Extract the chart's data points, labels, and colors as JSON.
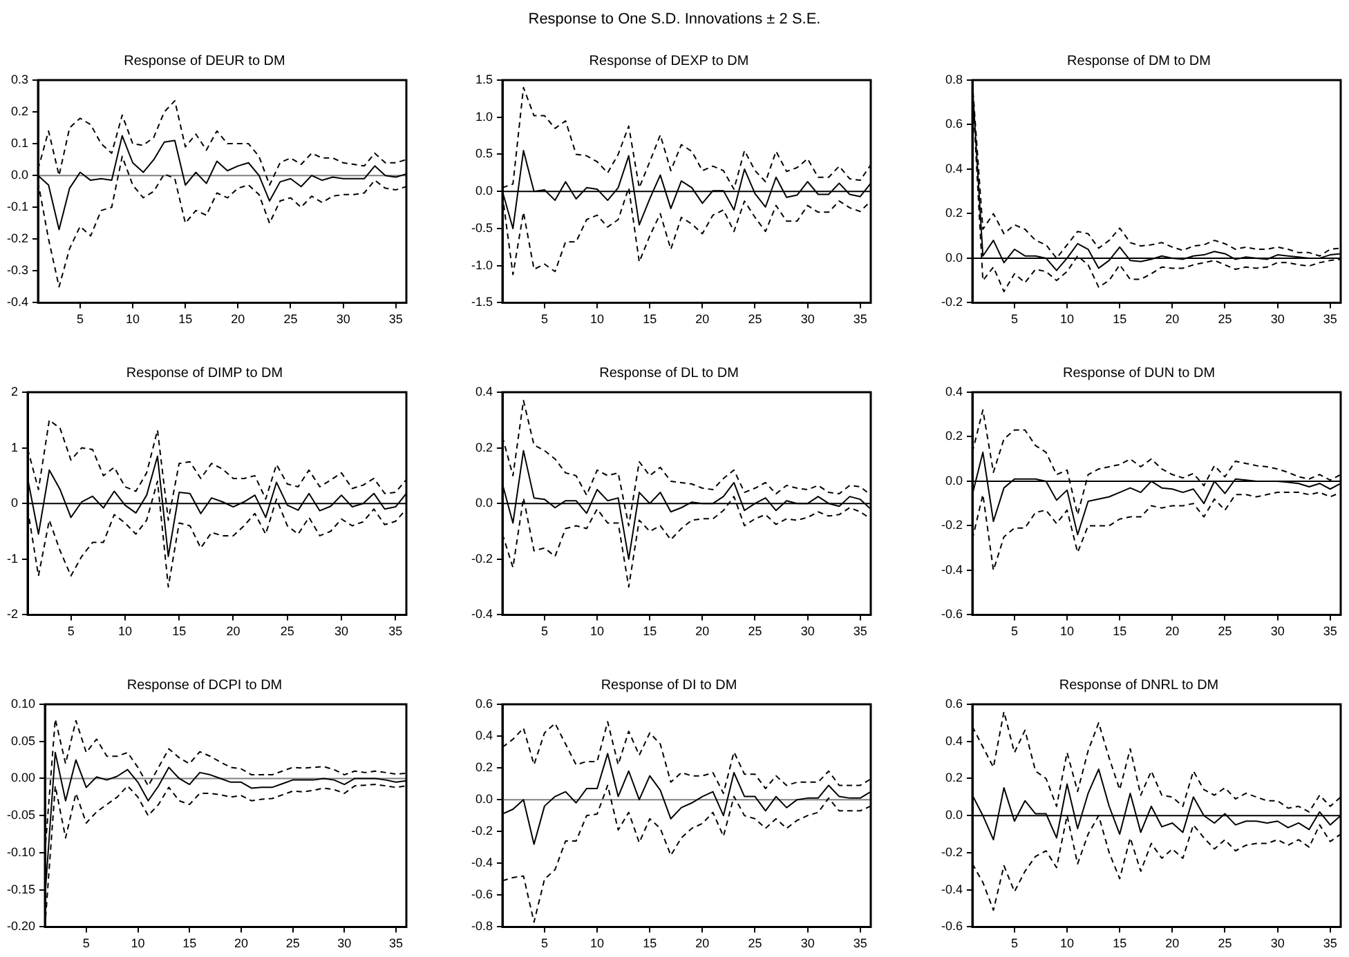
{
  "chart_data": [
    {
      "type": "other",
      "title": "Response to One S.D. Innovations ± 2 S.E."
    },
    {
      "type": "line",
      "title": "Response of DEUR to DM",
      "x": [
        1,
        2,
        3,
        4,
        5,
        6,
        7,
        8,
        9,
        10,
        11,
        12,
        13,
        14,
        15,
        16,
        17,
        18,
        19,
        20,
        21,
        22,
        23,
        24,
        25,
        26,
        27,
        28,
        29,
        30,
        31,
        32,
        33,
        34,
        35,
        36
      ],
      "xlim": [
        1,
        36
      ],
      "xticks": [
        5,
        10,
        15,
        20,
        25,
        30,
        35
      ],
      "ylim": [
        -0.4,
        0.3
      ],
      "yticks": [
        -0.4,
        -0.3,
        -0.2,
        -0.1,
        {
          "value": 0,
          "label": "0.0"
        },
        0.1,
        0.2,
        0.3
      ],
      "grid": false,
      "legend": false,
      "marker": "none",
      "ref_lines": [
        {
          "axis": "y",
          "value": 0,
          "color": "#808080"
        }
      ],
      "series": [
        {
          "color": "#000000",
          "line_style": "solid",
          "values": [
            0.0,
            -0.03,
            -0.17,
            -0.04,
            0.01,
            -0.015,
            -0.01,
            -0.015,
            0.125,
            0.04,
            0.01,
            0.05,
            0.105,
            0.11,
            -0.03,
            0.01,
            -0.025,
            0.045,
            0.015,
            0.03,
            0.04,
            0.0,
            -0.08,
            -0.02,
            -0.01,
            -0.035,
            0.0,
            -0.015,
            -0.005,
            -0.01,
            -0.01,
            -0.01,
            0.03,
            0.0,
            -0.005,
            0.005
          ]
        },
        {
          "color": "#000000",
          "line_style": "dashed",
          "values": [
            0.02,
            0.14,
            0.0,
            0.15,
            0.18,
            0.16,
            0.1,
            0.07,
            0.19,
            0.1,
            0.095,
            0.12,
            0.2,
            0.235,
            0.09,
            0.13,
            0.08,
            0.14,
            0.1,
            0.1,
            0.1,
            0.06,
            -0.03,
            0.04,
            0.055,
            0.035,
            0.07,
            0.055,
            0.055,
            0.04,
            0.035,
            0.03,
            0.07,
            0.04,
            0.04,
            0.05
          ]
        },
        {
          "color": "#000000",
          "line_style": "dashed",
          "values": [
            -0.02,
            -0.2,
            -0.35,
            -0.23,
            -0.16,
            -0.19,
            -0.11,
            -0.1,
            0.06,
            -0.03,
            -0.07,
            -0.05,
            0.005,
            -0.01,
            -0.15,
            -0.11,
            -0.125,
            -0.055,
            -0.07,
            -0.04,
            -0.03,
            -0.06,
            -0.15,
            -0.08,
            -0.07,
            -0.1,
            -0.065,
            -0.085,
            -0.065,
            -0.06,
            -0.06,
            -0.055,
            -0.015,
            -0.04,
            -0.045,
            -0.035
          ]
        }
      ]
    },
    {
      "type": "line",
      "title": "Response of DEXP to DM",
      "x": [
        1,
        2,
        3,
        4,
        5,
        6,
        7,
        8,
        9,
        10,
        11,
        12,
        13,
        14,
        15,
        16,
        17,
        18,
        19,
        20,
        21,
        22,
        23,
        24,
        25,
        26,
        27,
        28,
        29,
        30,
        31,
        32,
        33,
        34,
        35,
        36
      ],
      "xlim": [
        1,
        36
      ],
      "xticks": [
        5,
        10,
        15,
        20,
        25,
        30,
        35
      ],
      "ylim": [
        -1.5,
        1.5
      ],
      "yticks": [
        -1.5,
        {
          "value": -1,
          "label": "-1.0"
        },
        -0.5,
        {
          "value": 0,
          "label": "0.0"
        },
        0.5,
        {
          "value": 1,
          "label": "1.0"
        },
        1.5
      ],
      "grid": false,
      "legend": false,
      "marker": "none",
      "ref_lines": [
        {
          "axis": "y",
          "value": 0,
          "color": "#000000"
        }
      ],
      "series": [
        {
          "color": "#000000",
          "line_style": "solid",
          "values": [
            0.0,
            -0.5,
            0.55,
            0.0,
            0.02,
            -0.12,
            0.13,
            -0.1,
            0.05,
            0.03,
            -0.12,
            0.05,
            0.48,
            -0.45,
            -0.1,
            0.22,
            -0.23,
            0.14,
            0.05,
            -0.16,
            0.01,
            0.01,
            -0.25,
            0.3,
            -0.03,
            -0.21,
            0.19,
            -0.08,
            -0.05,
            0.13,
            -0.04,
            -0.04,
            0.11,
            -0.04,
            -0.07,
            0.11
          ]
        },
        {
          "color": "#000000",
          "line_style": "dashed",
          "values": [
            0.05,
            0.1,
            1.4,
            1.02,
            1.02,
            0.85,
            0.95,
            0.5,
            0.48,
            0.4,
            0.25,
            0.5,
            0.88,
            0.05,
            0.4,
            0.76,
            0.28,
            0.63,
            0.54,
            0.28,
            0.34,
            0.28,
            0.03,
            0.55,
            0.28,
            0.13,
            0.54,
            0.27,
            0.32,
            0.44,
            0.19,
            0.19,
            0.34,
            0.17,
            0.15,
            0.36
          ]
        },
        {
          "color": "#000000",
          "line_style": "dashed",
          "values": [
            -0.05,
            -1.12,
            -0.28,
            -1.05,
            -0.98,
            -1.08,
            -0.68,
            -0.68,
            -0.38,
            -0.32,
            -0.48,
            -0.38,
            0.05,
            -0.95,
            -0.6,
            -0.3,
            -0.78,
            -0.35,
            -0.44,
            -0.57,
            -0.32,
            -0.25,
            -0.54,
            -0.13,
            -0.35,
            -0.54,
            -0.19,
            -0.4,
            -0.4,
            -0.19,
            -0.28,
            -0.28,
            -0.13,
            -0.22,
            -0.27,
            -0.13
          ]
        }
      ]
    },
    {
      "type": "line",
      "title": "Response of DM to DM",
      "x": [
        1,
        2,
        3,
        4,
        5,
        6,
        7,
        8,
        9,
        10,
        11,
        12,
        13,
        14,
        15,
        16,
        17,
        18,
        19,
        20,
        21,
        22,
        23,
        24,
        25,
        26,
        27,
        28,
        29,
        30,
        31,
        32,
        33,
        34,
        35,
        36
      ],
      "xlim": [
        1,
        36
      ],
      "xticks": [
        5,
        10,
        15,
        20,
        25,
        30,
        35
      ],
      "ylim": [
        -0.2,
        0.8
      ],
      "yticks": [
        -0.2,
        {
          "value": 0,
          "label": "0.0"
        },
        0.2,
        0.4,
        0.6,
        0.8
      ],
      "grid": false,
      "legend": false,
      "marker": "none",
      "ref_lines": [
        {
          "axis": "y",
          "value": 0,
          "color": "#000000"
        }
      ],
      "series": [
        {
          "color": "#000000",
          "line_style": "solid",
          "values": [
            0.78,
            0.01,
            0.08,
            -0.02,
            0.04,
            0.01,
            0.01,
            0.0,
            -0.055,
            0.0,
            0.065,
            0.04,
            -0.045,
            -0.01,
            0.05,
            -0.01,
            -0.015,
            -0.005,
            0.01,
            0.0,
            -0.005,
            0.01,
            0.015,
            0.03,
            0.02,
            -0.005,
            0.005,
            0.0,
            -0.005,
            0.015,
            0.01,
            0.005,
            0.0,
            0.0,
            0.015,
            0.02
          ]
        },
        {
          "color": "#000000",
          "line_style": "dashed",
          "values": [
            0.79,
            0.13,
            0.2,
            0.11,
            0.15,
            0.13,
            0.08,
            0.06,
            0.0,
            0.06,
            0.12,
            0.11,
            0.045,
            0.08,
            0.135,
            0.07,
            0.055,
            0.06,
            0.07,
            0.05,
            0.035,
            0.055,
            0.06,
            0.08,
            0.065,
            0.04,
            0.05,
            0.04,
            0.04,
            0.05,
            0.04,
            0.025,
            0.025,
            0.01,
            0.04,
            0.045
          ]
        },
        {
          "color": "#000000",
          "line_style": "dashed",
          "values": [
            0.76,
            -0.1,
            -0.04,
            -0.15,
            -0.07,
            -0.11,
            -0.05,
            -0.06,
            -0.1,
            -0.06,
            0.01,
            -0.03,
            -0.13,
            -0.1,
            -0.03,
            -0.095,
            -0.095,
            -0.07,
            -0.04,
            -0.045,
            -0.045,
            -0.03,
            -0.02,
            -0.01,
            -0.03,
            -0.05,
            -0.04,
            -0.045,
            -0.04,
            -0.02,
            -0.02,
            -0.03,
            -0.035,
            -0.02,
            -0.01,
            -0.005
          ]
        }
      ]
    },
    {
      "type": "line",
      "title": "Response of DIMP to DM",
      "x": [
        1,
        2,
        3,
        4,
        5,
        6,
        7,
        8,
        9,
        10,
        11,
        12,
        13,
        14,
        15,
        16,
        17,
        18,
        19,
        20,
        21,
        22,
        23,
        24,
        25,
        26,
        27,
        28,
        29,
        30,
        31,
        32,
        33,
        34,
        35,
        36
      ],
      "xlim": [
        1,
        36
      ],
      "xticks": [
        5,
        10,
        15,
        20,
        25,
        30,
        35
      ],
      "ylim": [
        -2,
        2
      ],
      "yticks": [
        -2,
        -1,
        0,
        1,
        2
      ],
      "grid": false,
      "legend": false,
      "marker": "none",
      "ref_lines": [
        {
          "axis": "y",
          "value": 0,
          "color": "#000000"
        }
      ],
      "series": [
        {
          "color": "#000000",
          "line_style": "solid",
          "values": [
            0.45,
            -0.55,
            0.6,
            0.25,
            -0.25,
            0.03,
            0.13,
            -0.08,
            0.22,
            -0.03,
            -0.17,
            0.15,
            0.85,
            -0.95,
            0.2,
            0.18,
            -0.18,
            0.1,
            0.03,
            -0.06,
            0.03,
            0.15,
            -0.25,
            0.38,
            -0.03,
            -0.12,
            0.18,
            -0.13,
            -0.05,
            0.15,
            -0.06,
            0.0,
            0.18,
            -0.1,
            -0.06,
            0.18
          ]
        },
        {
          "color": "#000000",
          "line_style": "dashed",
          "values": [
            0.98,
            0.25,
            1.5,
            1.35,
            0.78,
            1.0,
            0.97,
            0.5,
            0.65,
            0.3,
            0.22,
            0.55,
            1.32,
            -0.3,
            0.72,
            0.75,
            0.45,
            0.72,
            0.62,
            0.45,
            0.45,
            0.5,
            0.08,
            0.7,
            0.35,
            0.3,
            0.6,
            0.3,
            0.42,
            0.55,
            0.27,
            0.33,
            0.45,
            0.18,
            0.2,
            0.43
          ]
        },
        {
          "color": "#000000",
          "line_style": "dashed",
          "values": [
            -0.1,
            -1.3,
            -0.3,
            -0.85,
            -1.3,
            -0.95,
            -0.7,
            -0.7,
            -0.2,
            -0.35,
            -0.55,
            -0.3,
            0.4,
            -1.5,
            -0.35,
            -0.4,
            -0.8,
            -0.52,
            -0.58,
            -0.58,
            -0.4,
            -0.18,
            -0.55,
            0.08,
            -0.4,
            -0.55,
            -0.25,
            -0.58,
            -0.5,
            -0.28,
            -0.4,
            -0.33,
            -0.1,
            -0.38,
            -0.32,
            -0.1
          ]
        }
      ]
    },
    {
      "type": "line",
      "title": "Response of DL to DM",
      "x": [
        1,
        2,
        3,
        4,
        5,
        6,
        7,
        8,
        9,
        10,
        11,
        12,
        13,
        14,
        15,
        16,
        17,
        18,
        19,
        20,
        21,
        22,
        23,
        24,
        25,
        26,
        27,
        28,
        29,
        30,
        31,
        32,
        33,
        34,
        35,
        36
      ],
      "xlim": [
        1,
        36
      ],
      "xticks": [
        5,
        10,
        15,
        20,
        25,
        30,
        35
      ],
      "ylim": [
        -0.4,
        0.4
      ],
      "yticks": [
        -0.4,
        -0.2,
        {
          "value": 0,
          "label": "0.0"
        },
        0.2,
        0.4
      ],
      "grid": false,
      "legend": false,
      "marker": "none",
      "ref_lines": [
        {
          "axis": "y",
          "value": 0,
          "color": "#000000"
        }
      ],
      "series": [
        {
          "color": "#000000",
          "line_style": "solid",
          "values": [
            0.07,
            -0.07,
            0.19,
            0.02,
            0.015,
            -0.015,
            0.01,
            0.01,
            -0.035,
            0.05,
            0.01,
            0.02,
            -0.2,
            0.04,
            0.0,
            0.04,
            -0.03,
            -0.015,
            0.005,
            0.0,
            0.0,
            0.025,
            0.075,
            -0.025,
            0.0,
            0.02,
            -0.025,
            0.01,
            0.0,
            0.0,
            0.025,
            0.0,
            -0.01,
            0.025,
            0.015,
            -0.02
          ]
        },
        {
          "color": "#000000",
          "line_style": "dashed",
          "values": [
            0.24,
            0.1,
            0.37,
            0.21,
            0.19,
            0.16,
            0.11,
            0.1,
            0.03,
            0.12,
            0.1,
            0.11,
            -0.08,
            0.15,
            0.1,
            0.13,
            0.08,
            0.075,
            0.07,
            0.055,
            0.05,
            0.09,
            0.12,
            0.04,
            0.055,
            0.075,
            0.035,
            0.065,
            0.055,
            0.05,
            0.065,
            0.04,
            0.035,
            0.065,
            0.06,
            0.03
          ]
        },
        {
          "color": "#000000",
          "line_style": "dashed",
          "values": [
            -0.11,
            -0.23,
            0.02,
            -0.17,
            -0.16,
            -0.19,
            -0.09,
            -0.08,
            -0.09,
            -0.02,
            -0.07,
            -0.07,
            -0.3,
            -0.06,
            -0.1,
            -0.08,
            -0.13,
            -0.09,
            -0.06,
            -0.055,
            -0.055,
            -0.025,
            0.025,
            -0.08,
            -0.055,
            -0.04,
            -0.075,
            -0.055,
            -0.06,
            -0.05,
            -0.03,
            -0.045,
            -0.04,
            -0.015,
            -0.03,
            -0.055
          ]
        }
      ]
    },
    {
      "type": "line",
      "title": "Response of DUN to DM",
      "x": [
        1,
        2,
        3,
        4,
        5,
        6,
        7,
        8,
        9,
        10,
        11,
        12,
        13,
        14,
        15,
        16,
        17,
        18,
        19,
        20,
        21,
        22,
        23,
        24,
        25,
        26,
        27,
        28,
        29,
        30,
        31,
        32,
        33,
        34,
        35,
        36
      ],
      "xlim": [
        1,
        36
      ],
      "xticks": [
        5,
        10,
        15,
        20,
        25,
        30,
        35
      ],
      "ylim": [
        -0.6,
        0.4
      ],
      "yticks": [
        -0.6,
        -0.4,
        -0.2,
        {
          "value": 0,
          "label": "0.0"
        },
        0.2,
        0.4
      ],
      "grid": false,
      "legend": false,
      "marker": "none",
      "ref_lines": [
        {
          "axis": "y",
          "value": 0,
          "color": "#000000"
        }
      ],
      "series": [
        {
          "color": "#000000",
          "line_style": "solid",
          "values": [
            -0.06,
            0.13,
            -0.18,
            -0.03,
            0.01,
            0.01,
            0.01,
            0.0,
            -0.085,
            -0.04,
            -0.24,
            -0.09,
            -0.08,
            -0.07,
            -0.05,
            -0.03,
            -0.05,
            0.0,
            -0.03,
            -0.035,
            -0.05,
            -0.035,
            -0.1,
            0.0,
            -0.055,
            0.01,
            0.005,
            0.0,
            0.0,
            0.0,
            -0.005,
            -0.01,
            -0.025,
            -0.01,
            -0.035,
            -0.01
          ]
        },
        {
          "color": "#000000",
          "line_style": "dashed",
          "values": [
            0.13,
            0.32,
            0.04,
            0.19,
            0.23,
            0.23,
            0.16,
            0.13,
            0.03,
            0.05,
            -0.15,
            0.03,
            0.055,
            0.065,
            0.075,
            0.1,
            0.065,
            0.1,
            0.055,
            0.03,
            0.015,
            0.035,
            -0.02,
            0.07,
            0.02,
            0.09,
            0.08,
            0.07,
            0.065,
            0.055,
            0.04,
            0.02,
            0.01,
            0.03,
            0.005,
            0.03
          ]
        },
        {
          "color": "#000000",
          "line_style": "dashed",
          "values": [
            -0.26,
            -0.06,
            -0.4,
            -0.25,
            -0.21,
            -0.21,
            -0.14,
            -0.13,
            -0.19,
            -0.13,
            -0.32,
            -0.2,
            -0.2,
            -0.2,
            -0.17,
            -0.16,
            -0.16,
            -0.11,
            -0.12,
            -0.11,
            -0.11,
            -0.1,
            -0.16,
            -0.08,
            -0.13,
            -0.06,
            -0.06,
            -0.07,
            -0.06,
            -0.05,
            -0.05,
            -0.05,
            -0.06,
            -0.05,
            -0.07,
            -0.05
          ]
        }
      ]
    },
    {
      "type": "line",
      "title": "Response of DCPI to DM",
      "x": [
        1,
        2,
        3,
        4,
        5,
        6,
        7,
        8,
        9,
        10,
        11,
        12,
        13,
        14,
        15,
        16,
        17,
        18,
        19,
        20,
        21,
        22,
        23,
        24,
        25,
        26,
        27,
        28,
        29,
        30,
        31,
        32,
        33,
        34,
        35,
        36
      ],
      "xlim": [
        1,
        36
      ],
      "xticks": [
        5,
        10,
        15,
        20,
        25,
        30,
        35
      ],
      "ylim": [
        -0.2,
        0.1
      ],
      "yticks": [
        {
          "value": -0.2,
          "label": "-0.20"
        },
        {
          "value": -0.15,
          "label": "-0.15"
        },
        {
          "value": -0.1,
          "label": "-0.10"
        },
        {
          "value": -0.05,
          "label": "-0.05"
        },
        {
          "value": 0,
          "label": "0.00"
        },
        {
          "value": 0.05,
          "label": "0.05"
        },
        {
          "value": 0.1,
          "label": "0.10"
        }
      ],
      "grid": false,
      "legend": false,
      "marker": "none",
      "ref_lines": [
        {
          "axis": "y",
          "value": 0,
          "color": "#808080"
        }
      ],
      "series": [
        {
          "color": "#000000",
          "line_style": "solid",
          "values": [
            -0.16,
            0.035,
            -0.03,
            0.025,
            -0.012,
            0.002,
            -0.002,
            0.003,
            0.012,
            -0.005,
            -0.03,
            -0.01,
            0.015,
            0.0,
            -0.008,
            0.008,
            0.005,
            0.0,
            -0.005,
            -0.005,
            -0.013,
            -0.012,
            -0.012,
            -0.007,
            -0.002,
            -0.002,
            -0.002,
            0.0,
            -0.002,
            -0.008,
            0.0,
            0.0,
            0.0,
            -0.002,
            -0.005,
            -0.003
          ]
        },
        {
          "color": "#000000",
          "line_style": "dashed",
          "values": [
            -0.1,
            0.08,
            0.02,
            0.078,
            0.035,
            0.053,
            0.03,
            0.03,
            0.035,
            0.015,
            -0.01,
            0.015,
            0.04,
            0.028,
            0.02,
            0.036,
            0.03,
            0.022,
            0.015,
            0.013,
            0.005,
            0.005,
            0.005,
            0.01,
            0.015,
            0.014,
            0.015,
            0.016,
            0.012,
            0.005,
            0.01,
            0.008,
            0.01,
            0.008,
            0.006,
            0.007
          ]
        },
        {
          "color": "#000000",
          "line_style": "dashed",
          "values": [
            -0.2,
            -0.01,
            -0.08,
            -0.02,
            -0.06,
            -0.045,
            -0.035,
            -0.025,
            -0.01,
            -0.025,
            -0.05,
            -0.035,
            -0.012,
            -0.03,
            -0.035,
            -0.02,
            -0.02,
            -0.022,
            -0.025,
            -0.023,
            -0.03,
            -0.028,
            -0.027,
            -0.022,
            -0.017,
            -0.018,
            -0.016,
            -0.013,
            -0.015,
            -0.02,
            -0.01,
            -0.009,
            -0.008,
            -0.01,
            -0.012,
            -0.01
          ]
        }
      ]
    },
    {
      "type": "line",
      "title": "Response of DI to DM",
      "x": [
        1,
        2,
        3,
        4,
        5,
        6,
        7,
        8,
        9,
        10,
        11,
        12,
        13,
        14,
        15,
        16,
        17,
        18,
        19,
        20,
        21,
        22,
        23,
        24,
        25,
        26,
        27,
        28,
        29,
        30,
        31,
        32,
        33,
        34,
        35,
        36
      ],
      "xlim": [
        1,
        36
      ],
      "xticks": [
        5,
        10,
        15,
        20,
        25,
        30,
        35
      ],
      "ylim": [
        -0.8,
        0.6
      ],
      "yticks": [
        -0.8,
        -0.6,
        -0.4,
        -0.2,
        {
          "value": 0,
          "label": "0.0"
        },
        0.2,
        0.4,
        0.6
      ],
      "grid": false,
      "legend": false,
      "marker": "none",
      "ref_lines": [
        {
          "axis": "y",
          "value": 0,
          "color": "#808080"
        }
      ],
      "series": [
        {
          "color": "#000000",
          "line_style": "solid",
          "values": [
            -0.09,
            -0.06,
            0.0,
            -0.28,
            -0.04,
            0.02,
            0.05,
            -0.02,
            0.07,
            0.07,
            0.29,
            0.02,
            0.18,
            0.0,
            0.15,
            0.06,
            -0.12,
            -0.05,
            -0.02,
            0.02,
            0.05,
            -0.1,
            0.17,
            0.02,
            0.02,
            -0.07,
            0.02,
            -0.05,
            0.0,
            0.01,
            0.01,
            0.09,
            0.02,
            0.01,
            0.01,
            0.05
          ]
        },
        {
          "color": "#000000",
          "line_style": "dashed",
          "values": [
            0.33,
            0.38,
            0.45,
            0.22,
            0.42,
            0.48,
            0.35,
            0.22,
            0.24,
            0.24,
            0.49,
            0.22,
            0.43,
            0.28,
            0.42,
            0.35,
            0.11,
            0.17,
            0.15,
            0.15,
            0.17,
            0.04,
            0.3,
            0.16,
            0.16,
            0.07,
            0.15,
            0.09,
            0.11,
            0.11,
            0.11,
            0.18,
            0.09,
            0.09,
            0.09,
            0.13
          ]
        },
        {
          "color": "#000000",
          "line_style": "dashed",
          "values": [
            -0.51,
            -0.49,
            -0.48,
            -0.77,
            -0.5,
            -0.44,
            -0.26,
            -0.26,
            -0.1,
            -0.09,
            0.09,
            -0.19,
            -0.08,
            -0.27,
            -0.12,
            -0.18,
            -0.35,
            -0.24,
            -0.18,
            -0.15,
            -0.08,
            -0.23,
            0.02,
            -0.1,
            -0.12,
            -0.18,
            -0.12,
            -0.18,
            -0.13,
            -0.1,
            -0.08,
            0.01,
            -0.07,
            -0.07,
            -0.07,
            -0.04
          ]
        }
      ]
    },
    {
      "type": "line",
      "title": "Response of DNRL to DM",
      "x": [
        1,
        2,
        3,
        4,
        5,
        6,
        7,
        8,
        9,
        10,
        11,
        12,
        13,
        14,
        15,
        16,
        17,
        18,
        19,
        20,
        21,
        22,
        23,
        24,
        25,
        26,
        27,
        28,
        29,
        30,
        31,
        32,
        33,
        34,
        35,
        36
      ],
      "xlim": [
        1,
        36
      ],
      "xticks": [
        5,
        10,
        15,
        20,
        25,
        30,
        35
      ],
      "ylim": [
        -0.6,
        0.6
      ],
      "yticks": [
        -0.6,
        -0.4,
        -0.2,
        {
          "value": 0,
          "label": "0.0"
        },
        0.2,
        0.4,
        0.6
      ],
      "grid": false,
      "legend": false,
      "marker": "none",
      "ref_lines": [
        {
          "axis": "y",
          "value": 0,
          "color": "#000000"
        }
      ],
      "series": [
        {
          "color": "#000000",
          "line_style": "solid",
          "values": [
            0.11,
            0.0,
            -0.13,
            0.15,
            -0.03,
            0.08,
            0.01,
            0.01,
            -0.12,
            0.17,
            -0.07,
            0.12,
            0.25,
            0.05,
            -0.1,
            0.12,
            -0.09,
            0.05,
            -0.06,
            -0.04,
            -0.09,
            0.1,
            0.0,
            -0.04,
            0.01,
            -0.05,
            -0.03,
            -0.03,
            -0.04,
            -0.03,
            -0.065,
            -0.04,
            -0.075,
            0.02,
            -0.05,
            0.0
          ]
        },
        {
          "color": "#000000",
          "line_style": "dashed",
          "values": [
            0.48,
            0.37,
            0.26,
            0.56,
            0.34,
            0.46,
            0.24,
            0.2,
            0.05,
            0.34,
            0.13,
            0.35,
            0.5,
            0.31,
            0.14,
            0.36,
            0.11,
            0.24,
            0.11,
            0.1,
            0.05,
            0.24,
            0.14,
            0.11,
            0.15,
            0.09,
            0.12,
            0.1,
            0.08,
            0.08,
            0.04,
            0.05,
            0.02,
            0.11,
            0.05,
            0.1
          ]
        },
        {
          "color": "#000000",
          "line_style": "dashed",
          "values": [
            -0.26,
            -0.36,
            -0.51,
            -0.27,
            -0.41,
            -0.3,
            -0.22,
            -0.19,
            -0.28,
            0.0,
            -0.26,
            -0.1,
            0.0,
            -0.2,
            -0.34,
            -0.12,
            -0.3,
            -0.15,
            -0.23,
            -0.18,
            -0.23,
            -0.05,
            -0.12,
            -0.18,
            -0.13,
            -0.19,
            -0.16,
            -0.15,
            -0.15,
            -0.13,
            -0.16,
            -0.13,
            -0.17,
            -0.05,
            -0.14,
            -0.1
          ]
        }
      ]
    }
  ]
}
